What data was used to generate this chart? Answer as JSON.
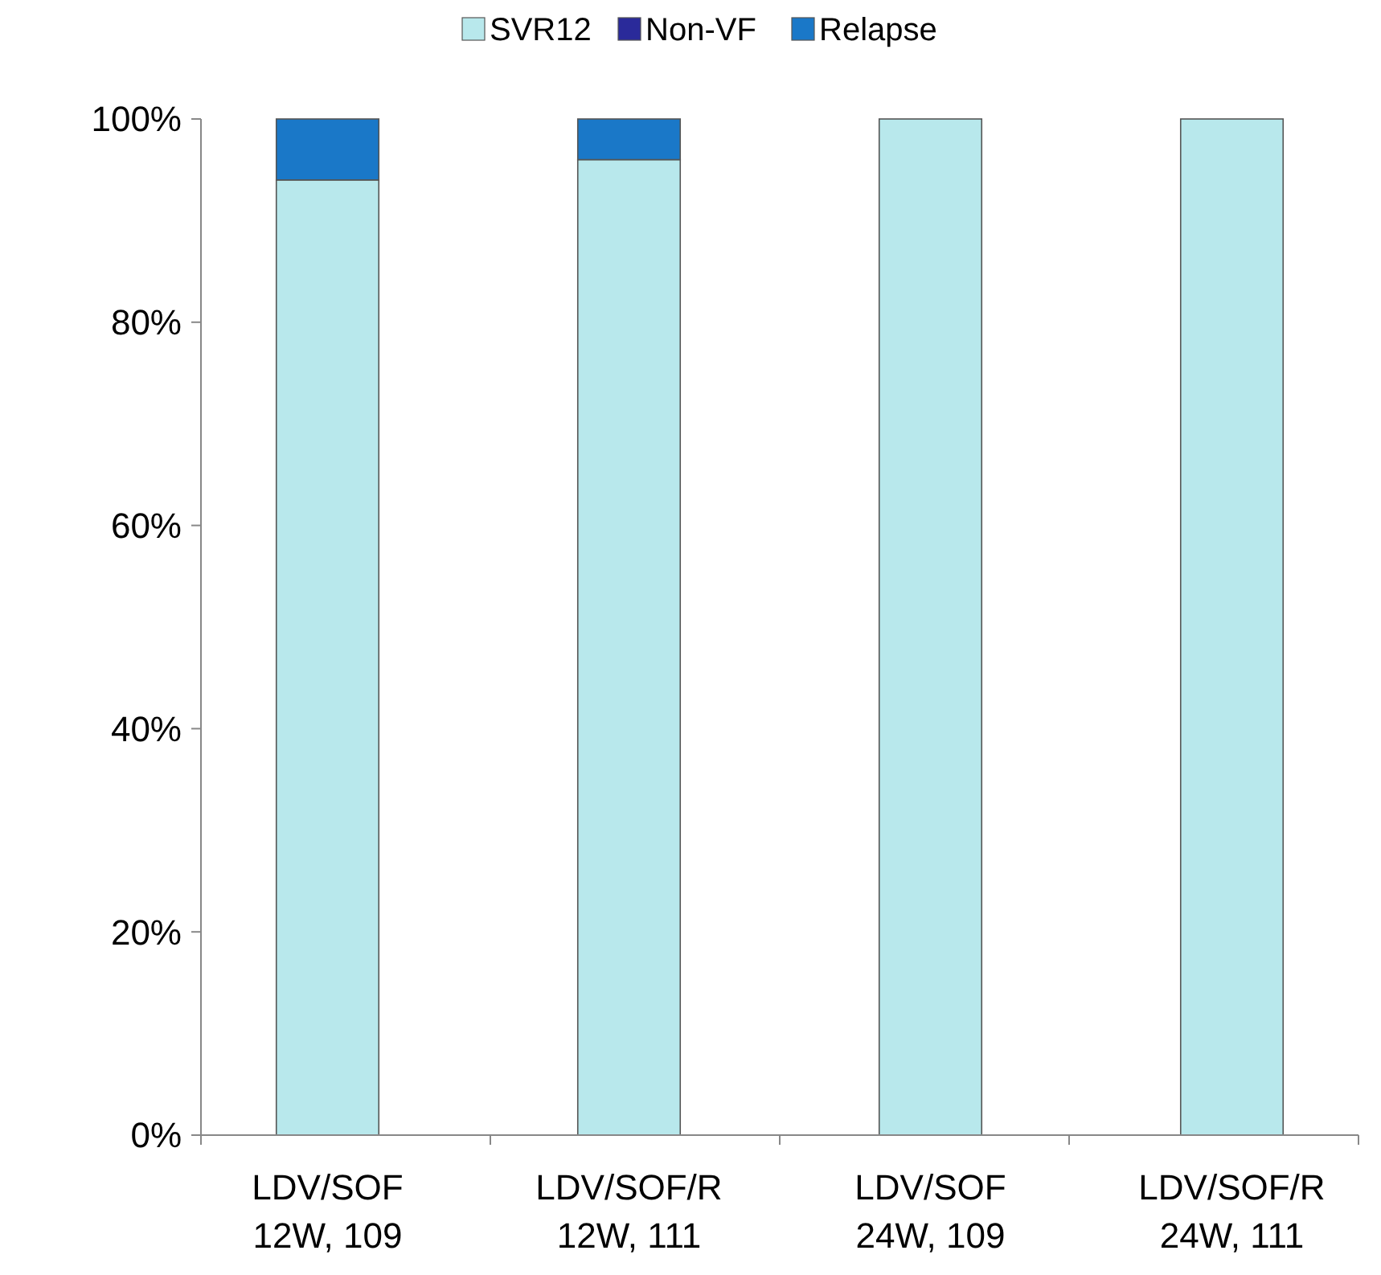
{
  "chart_data": {
    "type": "bar",
    "stacked": true,
    "categories": [
      "LDV/SOF\n12W, 109",
      "LDV/SOF/R\n12W, 111",
      "LDV/SOF\n24W, 109",
      "LDV/SOF/R\n24W, 111"
    ],
    "series": [
      {
        "name": "SVR12",
        "color": "#b8e8ec",
        "values": [
          94,
          96,
          100,
          100
        ]
      },
      {
        "name": "Non-VF",
        "color": "#2a2a9a",
        "values": [
          0,
          0,
          0,
          0
        ]
      },
      {
        "name": "Relapse",
        "color": "#1a78c8",
        "values": [
          6,
          4,
          0,
          0
        ]
      }
    ],
    "ylim": [
      0,
      100
    ],
    "yticks": [
      {
        "value": 0,
        "label": "0%"
      },
      {
        "value": 20,
        "label": "20%"
      },
      {
        "value": 40,
        "label": "40%"
      },
      {
        "value": 60,
        "label": "60%"
      },
      {
        "value": 80,
        "label": "80%"
      },
      {
        "value": 100,
        "label": "100%"
      }
    ],
    "grid": false,
    "legend": "top"
  }
}
